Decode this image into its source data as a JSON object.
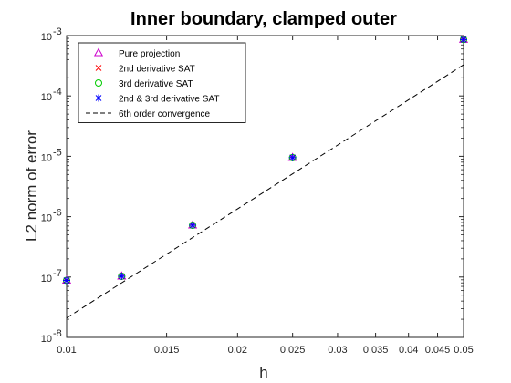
{
  "chart_data": {
    "type": "scatter",
    "title": "Inner boundary, clamped outer",
    "xlabel": "h",
    "ylabel": "L2 norm of error",
    "xscale": "log",
    "yscale": "log",
    "xlim": [
      0.01,
      0.05
    ],
    "ylim": [
      1e-08,
      0.001
    ],
    "x_ticks": [
      0.01,
      0.015,
      0.02,
      0.025,
      0.03,
      0.035,
      0.04,
      0.045,
      0.05
    ],
    "x_tick_labels": [
      "0.01",
      "0.015",
      "0.02",
      "0.025",
      "0.03",
      "0.035",
      "0.04",
      "0.045",
      "0.05"
    ],
    "y_ticks": [
      1e-08,
      1e-07,
      1e-06,
      1e-05,
      0.0001,
      0.001
    ],
    "y_tick_labels": [
      "10",
      "10",
      "10",
      "10",
      "10",
      "10"
    ],
    "y_tick_exponents": [
      "-8",
      "-7",
      "-6",
      "-5",
      "-4",
      "-3"
    ],
    "grid": false,
    "legend_position": "top-left",
    "x": [
      0.01,
      0.0125,
      0.016667,
      0.025,
      0.05
    ],
    "series": [
      {
        "name": "Pure projection",
        "marker": "triangle",
        "color": "#cc00cc",
        "values": [
          8.8e-08,
          1.03e-07,
          7.2e-07,
          9.5e-06,
          0.00086
        ]
      },
      {
        "name": "2nd derivative SAT",
        "marker": "cross",
        "color": "#ff0000",
        "values": [
          8.8e-08,
          1.03e-07,
          7.2e-07,
          9.5e-06,
          0.00086
        ]
      },
      {
        "name": "3rd derivative SAT",
        "marker": "circle",
        "color": "#00cc00",
        "values": [
          8.8e-08,
          1.03e-07,
          7.2e-07,
          9.5e-06,
          0.00086
        ]
      },
      {
        "name": "2nd & 3rd derivative SAT",
        "marker": "asterisk",
        "color": "#0000ff",
        "values": [
          8.8e-08,
          1.03e-07,
          7.2e-07,
          9.5e-06,
          0.00086
        ]
      },
      {
        "name": "6th order convergence",
        "marker": "none",
        "line": "dashed",
        "color": "#000000",
        "values": [
          2.1e-08,
          0.000328
        ]
      }
    ],
    "reference_line_x": [
      0.01,
      0.05
    ]
  }
}
